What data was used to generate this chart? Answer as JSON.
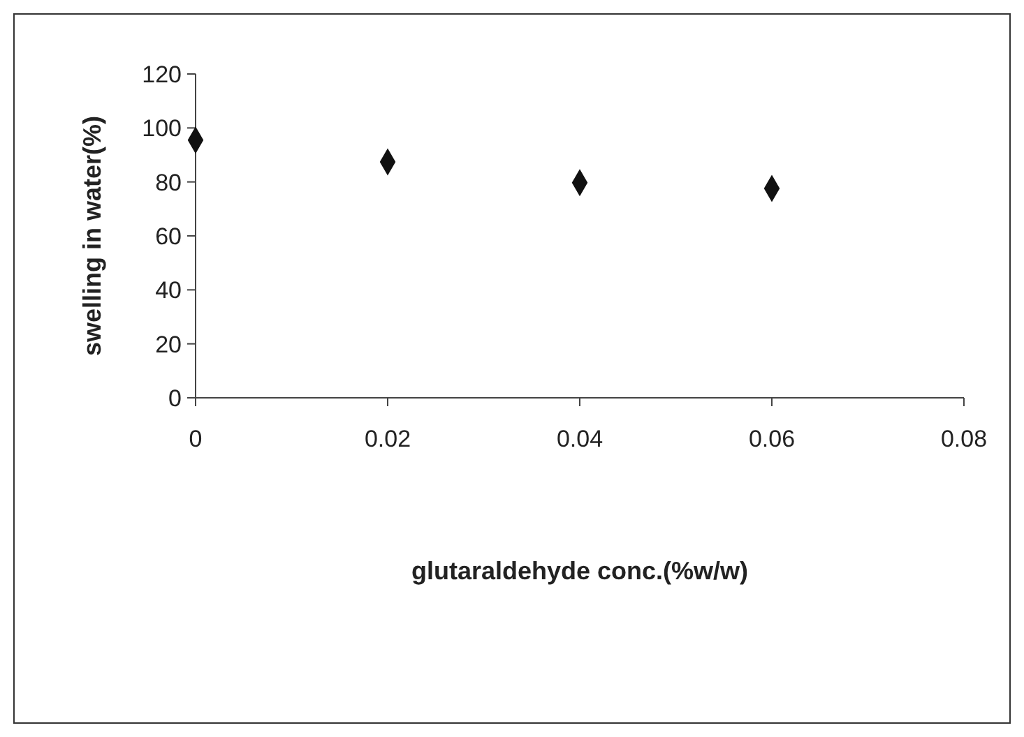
{
  "chart_data": {
    "type": "scatter",
    "xlabel": "glutaraldehyde conc.(%w/w)",
    "ylabel": "swelling in water(%)",
    "x": [
      0,
      0.02,
      0.04,
      0.06
    ],
    "values": [
      95.5,
      87.4,
      79.7,
      77.6
    ],
    "color": "#111111",
    "marker": "diamond",
    "xlim": [
      0,
      0.08
    ],
    "xticks": [
      0,
      0.02,
      0.04,
      0.06,
      0.08
    ],
    "ylim": [
      0,
      120
    ],
    "yticks": [
      0,
      20,
      40,
      60,
      80,
      100,
      120
    ]
  }
}
